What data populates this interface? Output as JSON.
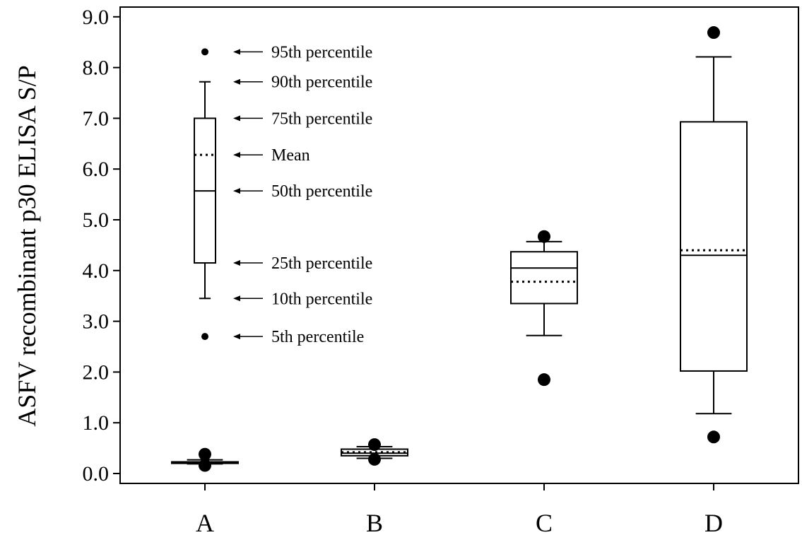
{
  "chart_data": {
    "type": "box",
    "ylabel": "ASFV recombinant p30 ELISA S/P",
    "xlabel": "",
    "ylim": [
      0,
      9.0
    ],
    "yticks": [
      "0.0",
      "1.0",
      "2.0",
      "3.0",
      "4.0",
      "5.0",
      "6.0",
      "7.0",
      "8.0",
      "9.0"
    ],
    "grid": false,
    "categories": [
      "A",
      "B",
      "C",
      "D"
    ],
    "boxes": [
      {
        "category": "A",
        "p5": 0.16,
        "p10": 0.19,
        "p25": 0.2,
        "median": 0.21,
        "mean": 0.22,
        "p75": 0.23,
        "p90": 0.27,
        "p95": 0.38
      },
      {
        "category": "B",
        "p5": 0.28,
        "p10": 0.3,
        "p25": 0.35,
        "median": 0.4,
        "mean": 0.42,
        "p75": 0.48,
        "p90": 0.53,
        "p95": 0.57
      },
      {
        "category": "C",
        "p5": 1.85,
        "p10": 2.72,
        "p25": 3.35,
        "median": 4.05,
        "mean": 3.78,
        "p75": 4.37,
        "p90": 4.57,
        "p95": 4.67
      },
      {
        "category": "D",
        "p5": 0.72,
        "p10": 1.18,
        "p25": 2.02,
        "median": 4.3,
        "mean": 4.4,
        "p75": 6.93,
        "p90": 8.21,
        "p95": 8.69
      }
    ],
    "legend_example": {
      "p5": 2.7,
      "p10": 3.45,
      "p25": 4.15,
      "median": 5.57,
      "mean": 6.28,
      "p75": 7.0,
      "p90": 7.72,
      "p95": 8.31,
      "labels": {
        "p95": "95th percentile",
        "p90": "90th percentile",
        "p75": "75th percentile",
        "mean": "Mean",
        "median": "50th percentile",
        "p25": "25th percentile",
        "p10": "10th percentile",
        "p5": "5th percentile"
      }
    }
  }
}
